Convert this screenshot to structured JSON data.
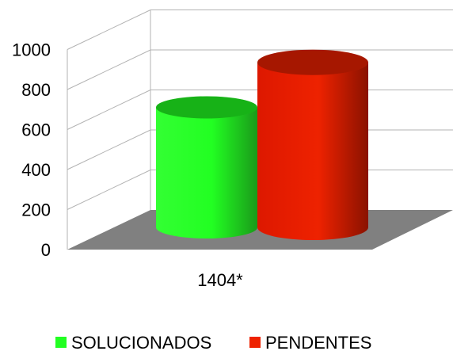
{
  "chart_data": {
    "type": "bar",
    "style": "3d-cylinder",
    "categories": [
      "1404*"
    ],
    "series": [
      {
        "name": "SOLUCIONADOS",
        "values": [
          600
        ],
        "color": "#22ff22"
      },
      {
        "name": "PENDENTES",
        "values": [
          825
        ],
        "color": "#ee2200"
      }
    ],
    "ylim": [
      0,
      1000
    ],
    "yticks": [
      "0",
      "200",
      "400",
      "600",
      "800",
      "1000"
    ],
    "grid": true,
    "legend_position": "bottom",
    "floor_color": "#808080"
  }
}
